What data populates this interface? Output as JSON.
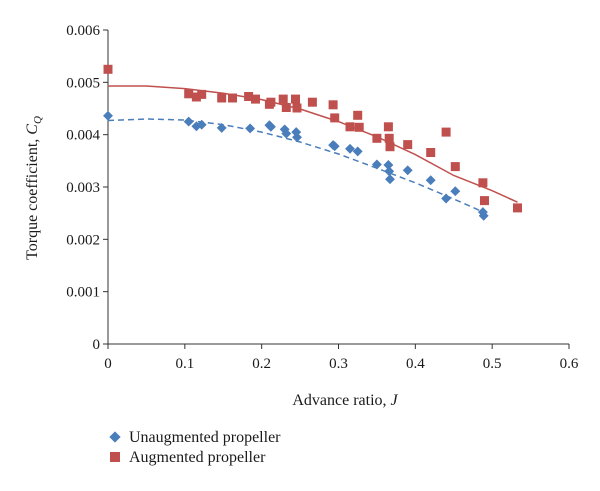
{
  "chart_data": {
    "type": "scatter",
    "xlabel": "Advance ratio, ",
    "xlabel_var": "J",
    "ylabel": "Torque coefficient, ",
    "ylabel_var": "C",
    "ylabel_sub": "Q",
    "xlim": [
      0,
      0.6
    ],
    "ylim": [
      0,
      0.006
    ],
    "xticks": [
      "0",
      "0.1",
      "0.2",
      "0.3",
      "0.4",
      "0.5",
      "0.6"
    ],
    "yticks": [
      "0",
      "0.001",
      "0.002",
      "0.003",
      "0.004",
      "0.005",
      "0.006"
    ],
    "grid": false,
    "legend": "bottom-left",
    "series": [
      {
        "name": "Unaugmented propeller",
        "marker": "diamond",
        "color": "#4a7ebb",
        "trend": "dashed",
        "points": [
          [
            0,
            0.00436
          ],
          [
            0.105,
            0.00425
          ],
          [
            0.115,
            0.00416
          ],
          [
            0.122,
            0.00419
          ],
          [
            0.148,
            0.00413
          ],
          [
            0.185,
            0.00412
          ],
          [
            0.21,
            0.00418
          ],
          [
            0.212,
            0.00415
          ],
          [
            0.23,
            0.0041
          ],
          [
            0.232,
            0.00402
          ],
          [
            0.245,
            0.00405
          ],
          [
            0.246,
            0.00395
          ],
          [
            0.293,
            0.0038
          ],
          [
            0.295,
            0.00378
          ],
          [
            0.315,
            0.00373
          ],
          [
            0.325,
            0.00368
          ],
          [
            0.35,
            0.00343
          ],
          [
            0.365,
            0.00342
          ],
          [
            0.366,
            0.0033
          ],
          [
            0.367,
            0.00315
          ],
          [
            0.39,
            0.00332
          ],
          [
            0.42,
            0.00313
          ],
          [
            0.44,
            0.00278
          ],
          [
            0.452,
            0.00292
          ],
          [
            0.488,
            0.00252
          ],
          [
            0.489,
            0.00245
          ]
        ],
        "trend_points": [
          [
            0,
            0.00427
          ],
          [
            0.05,
            0.0043
          ],
          [
            0.1,
            0.00428
          ],
          [
            0.15,
            0.00419
          ],
          [
            0.2,
            0.00405
          ],
          [
            0.25,
            0.00386
          ],
          [
            0.3,
            0.00363
          ],
          [
            0.35,
            0.00336
          ],
          [
            0.4,
            0.00308
          ],
          [
            0.45,
            0.00277
          ],
          [
            0.49,
            0.00251
          ]
        ]
      },
      {
        "name": "Augmented propeller",
        "marker": "square",
        "color": "#c0504d",
        "trend": "solid",
        "points": [
          [
            0,
            0.00525
          ],
          [
            0.105,
            0.00478
          ],
          [
            0.115,
            0.00472
          ],
          [
            0.122,
            0.00477
          ],
          [
            0.148,
            0.0047
          ],
          [
            0.162,
            0.0047
          ],
          [
            0.183,
            0.00473
          ],
          [
            0.192,
            0.00468
          ],
          [
            0.21,
            0.00458
          ],
          [
            0.212,
            0.00462
          ],
          [
            0.228,
            0.00468
          ],
          [
            0.232,
            0.00452
          ],
          [
            0.244,
            0.00468
          ],
          [
            0.246,
            0.00451
          ],
          [
            0.266,
            0.00462
          ],
          [
            0.293,
            0.00457
          ],
          [
            0.295,
            0.00432
          ],
          [
            0.315,
            0.00415
          ],
          [
            0.325,
            0.00437
          ],
          [
            0.327,
            0.00414
          ],
          [
            0.35,
            0.00393
          ],
          [
            0.365,
            0.00415
          ],
          [
            0.366,
            0.00393
          ],
          [
            0.367,
            0.00377
          ],
          [
            0.39,
            0.00381
          ],
          [
            0.42,
            0.00366
          ],
          [
            0.44,
            0.00405
          ],
          [
            0.452,
            0.00339
          ],
          [
            0.488,
            0.00308
          ],
          [
            0.49,
            0.00274
          ],
          [
            0.533,
            0.0026
          ]
        ],
        "trend_points": [
          [
            0,
            0.00493
          ],
          [
            0.05,
            0.00493
          ],
          [
            0.1,
            0.00488
          ],
          [
            0.15,
            0.00479
          ],
          [
            0.2,
            0.00467
          ],
          [
            0.25,
            0.00449
          ],
          [
            0.3,
            0.00425
          ],
          [
            0.35,
            0.00396
          ],
          [
            0.4,
            0.00362
          ],
          [
            0.45,
            0.00322
          ],
          [
            0.5,
            0.00293
          ],
          [
            0.533,
            0.00271
          ]
        ]
      }
    ]
  }
}
